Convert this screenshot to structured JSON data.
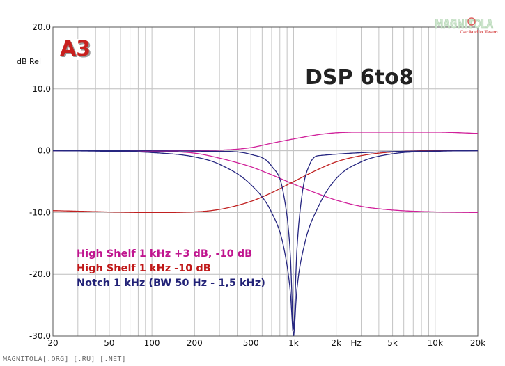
{
  "chart_data": {
    "type": "line",
    "title": "DSP 6to8",
    "ylabel": "dB Rel",
    "xlabel": "Hz",
    "x_scale": "log",
    "xlim": [
      20,
      20000
    ],
    "ylim": [
      -30,
      20
    ],
    "grid": true,
    "y_ticks": [
      "20.0",
      "10.0",
      "0.0",
      "-10.0",
      "-20.0",
      "-30.0"
    ],
    "x_ticks": [
      {
        "v": 20,
        "label": "20"
      },
      {
        "v": 50,
        "label": "50"
      },
      {
        "v": 100,
        "label": "100"
      },
      {
        "v": 200,
        "label": "200"
      },
      {
        "v": 500,
        "label": "500"
      },
      {
        "v": 1000,
        "label": "1k"
      },
      {
        "v": 2000,
        "label": "2k"
      },
      {
        "v": 5000,
        "label": "5k"
      },
      {
        "v": 10000,
        "label": "10k"
      },
      {
        "v": 20000,
        "label": "20k"
      }
    ],
    "legend": [
      {
        "text": "High Shelf 1 kHz +3 dB, -10 dB",
        "color": "#c0158f"
      },
      {
        "text": "High Shelf 1 kHz  -10 dB",
        "color": "#c01818"
      },
      {
        "text": "Notch 1 kHz (BW 50 Hz - 1,5 kHz)",
        "color": "#222277"
      }
    ],
    "series": [
      {
        "color": "#d0209a",
        "x": [
          20,
          100,
          300,
          500,
          700,
          1000,
          1500,
          2000,
          3000,
          5000,
          10000,
          20000
        ],
        "y": [
          0,
          0,
          0.1,
          0.5,
          1.2,
          1.9,
          2.6,
          2.9,
          3.0,
          3.0,
          3.0,
          2.8
        ]
      },
      {
        "color": "#d0209a",
        "x": [
          20,
          100,
          200,
          300,
          500,
          700,
          1000,
          1500,
          2000,
          3000,
          5000,
          10000,
          20000
        ],
        "y": [
          0,
          -0.1,
          -0.4,
          -1.2,
          -2.6,
          -3.9,
          -5.4,
          -7.0,
          -8.0,
          -9.0,
          -9.6,
          -9.9,
          -10.0
        ]
      },
      {
        "color": "#c02020",
        "x": [
          20,
          100,
          200,
          300,
          500,
          700,
          1000,
          1500,
          2000,
          3000,
          5000,
          10000,
          20000
        ],
        "y": [
          -9.7,
          -10.0,
          -9.9,
          -9.5,
          -8.2,
          -6.8,
          -5.0,
          -3.0,
          -1.8,
          -0.8,
          -0.2,
          0,
          0
        ]
      },
      {
        "color": "#262680",
        "x": [
          20,
          300,
          500,
          700,
          850,
          950,
          1000,
          1050,
          1150,
          1300,
          1500,
          20000
        ],
        "y": [
          0,
          -0.1,
          -0.6,
          -2.5,
          -7.0,
          -17.0,
          -29.0,
          -17.0,
          -7.0,
          -2.2,
          -0.8,
          0
        ]
      },
      {
        "color": "#262680",
        "x": [
          20,
          50,
          100,
          200,
          300,
          500,
          700,
          850,
          950,
          1000,
          1050,
          1200,
          1500,
          2000,
          3000,
          5000,
          10000,
          20000
        ],
        "y": [
          0,
          -0.1,
          -0.3,
          -1.0,
          -2.2,
          -5.5,
          -10.0,
          -15.5,
          -23.0,
          -30.0,
          -23.0,
          -15.0,
          -9.0,
          -4.5,
          -1.8,
          -0.5,
          -0.1,
          0
        ]
      }
    ]
  },
  "badge": {
    "text": "A3",
    "color": "#c8201e"
  },
  "brand": {
    "name": "MAGNITOLA",
    "sub": "CarAudio Team"
  },
  "footer": {
    "text": "MAGNITOLA[.ORG] [.RU] [.NET]"
  }
}
